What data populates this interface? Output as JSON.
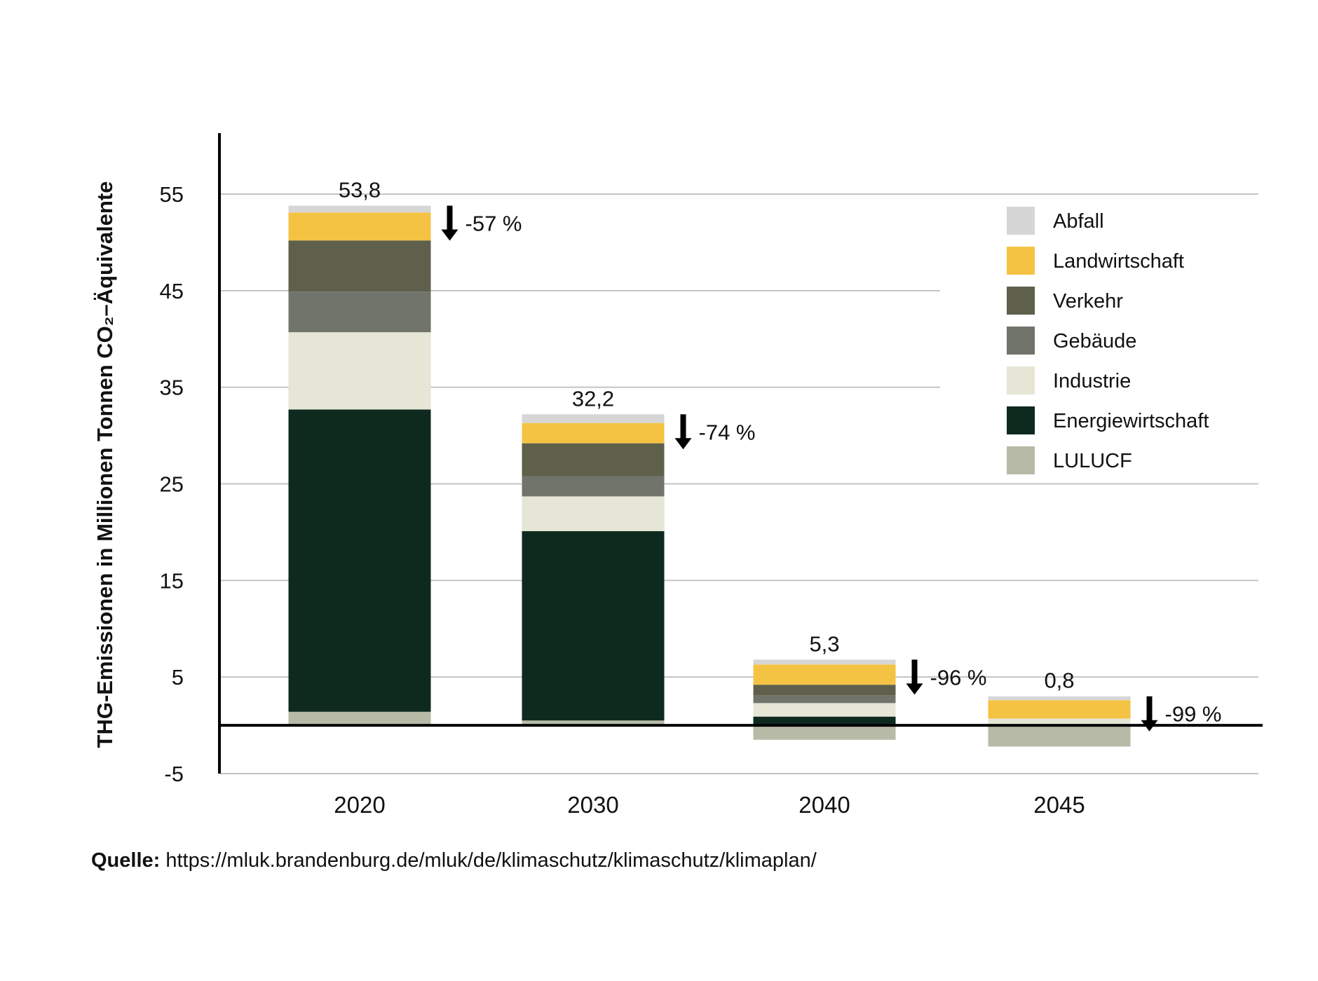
{
  "chart_data": {
    "type": "bar",
    "stacked": true,
    "ylabel": "THG-Emissionen in Millionen Tonnen CO₂–Äquivalente",
    "ylim": [
      -5,
      60
    ],
    "yticks": [
      55,
      45,
      35,
      25,
      15,
      5,
      -5
    ],
    "grid": true,
    "legend_position": "top-right",
    "categories": [
      "2020",
      "2030",
      "2040",
      "2045"
    ],
    "totals": [
      "53,8",
      "32,2",
      "5,3",
      "0,8"
    ],
    "reductions": [
      "-57 %",
      "-74 %",
      "-96 %",
      "-99 %"
    ],
    "series": [
      {
        "name": "LULUCF",
        "color": "#b7baa6",
        "values": [
          1.4,
          0.5,
          -1.5,
          -2.2
        ]
      },
      {
        "name": "Energiewirtschaft",
        "color": "#0e2a1f",
        "values": [
          31.3,
          19.6,
          0.9,
          0
        ]
      },
      {
        "name": "Industrie",
        "color": "#e5e6d6",
        "values": [
          8.0,
          3.6,
          1.4,
          0.7
        ]
      },
      {
        "name": "Gebäude",
        "color": "#70746a",
        "values": [
          4.2,
          2.1,
          0.8,
          0
        ]
      },
      {
        "name": "Verkehr",
        "color": "#5e604c",
        "values": [
          5.3,
          3.4,
          1.1,
          0
        ]
      },
      {
        "name": "Landwirtschaft",
        "color": "#f5c343",
        "values": [
          2.9,
          2.1,
          2.1,
          1.9
        ]
      },
      {
        "name": "Abfall",
        "color": "#d6d6d6",
        "values": [
          0.7,
          0.9,
          0.5,
          0.4
        ]
      }
    ],
    "legend_order": [
      "Abfall",
      "Landwirtschaft",
      "Verkehr",
      "Gebäude",
      "Industrie",
      "Energiewirtschaft",
      "LULUCF"
    ]
  },
  "source": {
    "label": "Quelle:",
    "url": "https://mluk.brandenburg.de/mluk/de/klimaschutz/klimaschutz/klimaplan/"
  }
}
